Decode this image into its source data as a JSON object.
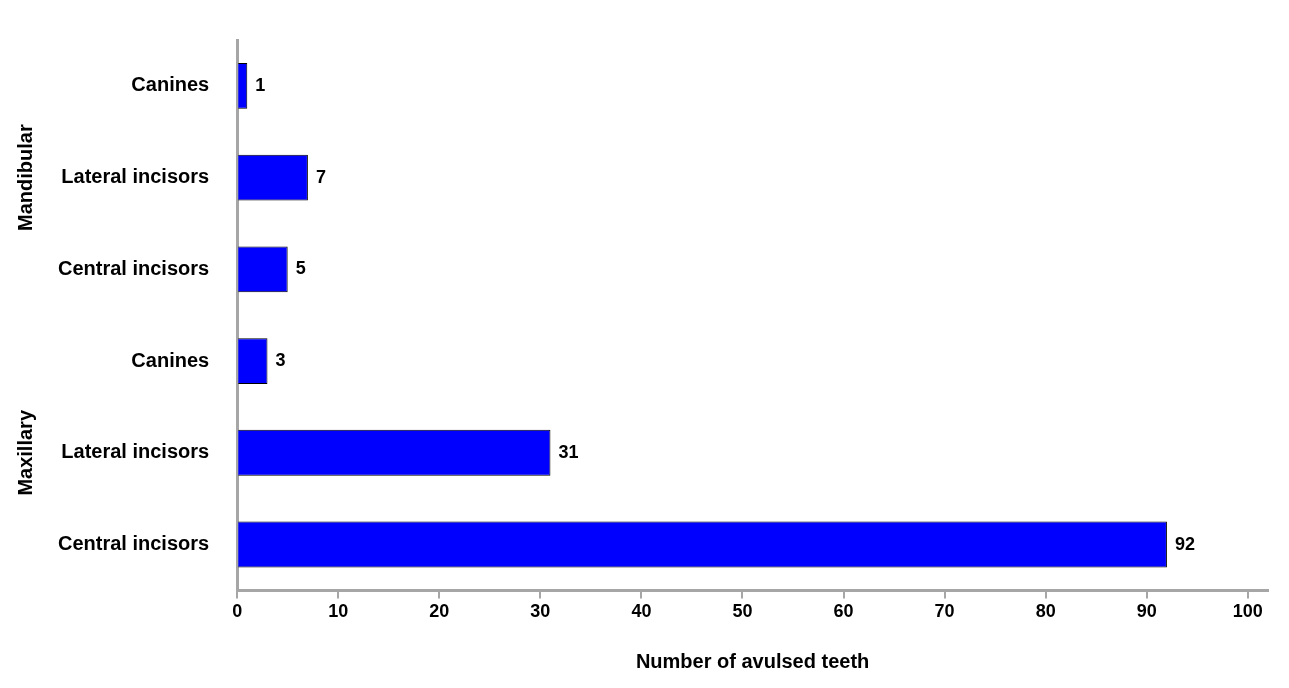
{
  "chart_data": {
    "type": "bar",
    "orientation": "horizontal",
    "xlabel": "Number of avulsed teeth",
    "categories": [
      "Canines",
      "Lateral incisors",
      "Central incisors",
      "Canines",
      "Lateral incisors",
      "Central incisors"
    ],
    "values": [
      1,
      7,
      5,
      3,
      31,
      92
    ],
    "color": "#0000ff",
    "xlim": [
      0,
      102
    ],
    "xticks": [
      0,
      10,
      20,
      30,
      40,
      50,
      60,
      70,
      80,
      90,
      100
    ],
    "grid": false,
    "legend": false,
    "data_labels": true,
    "annotations": [
      "Mandibular",
      "Maxillary"
    ]
  }
}
